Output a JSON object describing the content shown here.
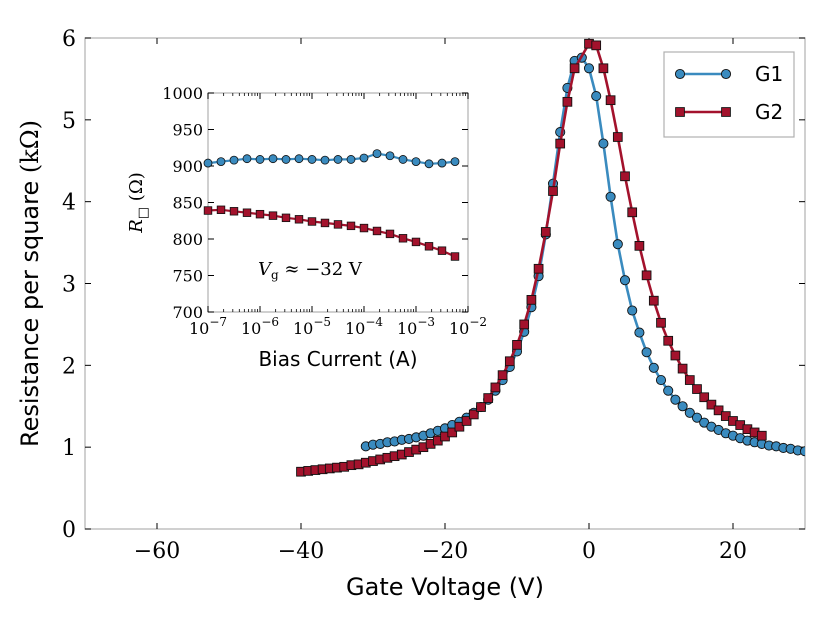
{
  "chart_data": [
    {
      "type": "line",
      "xlabel": "Gate Voltage (V)",
      "ylabel": "Resistance per square (kΩ)",
      "xlim": [
        -70,
        30
      ],
      "ylim": [
        0,
        6
      ],
      "xticks": [
        -60,
        -40,
        -20,
        0,
        20
      ],
      "xtick_labels": [
        "−60",
        "−40",
        "−20",
        "0",
        "20"
      ],
      "yticks": [
        0,
        1,
        2,
        3,
        4,
        5,
        6
      ],
      "ytick_labels": [
        "0",
        "1",
        "2",
        "3",
        "4",
        "5",
        "6"
      ],
      "legend": "top-right",
      "grid": false,
      "series": [
        {
          "name": "G1",
          "color": "#3a8bbf",
          "marker": "circle",
          "points": [
            [
              -31,
              1.01
            ],
            [
              -30,
              1.03
            ],
            [
              -29,
              1.04
            ],
            [
              -28,
              1.06
            ],
            [
              -27,
              1.07
            ],
            [
              -26,
              1.09
            ],
            [
              -25,
              1.1
            ],
            [
              -24,
              1.12
            ],
            [
              -23,
              1.14
            ],
            [
              -22,
              1.17
            ],
            [
              -21,
              1.2
            ],
            [
              -20,
              1.23
            ],
            [
              -19,
              1.27
            ],
            [
              -18,
              1.31
            ],
            [
              -17,
              1.36
            ],
            [
              -16,
              1.42
            ],
            [
              -15,
              1.49
            ],
            [
              -14,
              1.58
            ],
            [
              -13,
              1.69
            ],
            [
              -12,
              1.82
            ],
            [
              -11,
              1.98
            ],
            [
              -10,
              2.17
            ],
            [
              -9,
              2.41
            ],
            [
              -8,
              2.71
            ],
            [
              -7,
              3.09
            ],
            [
              -6,
              3.6
            ],
            [
              -5,
              4.22
            ],
            [
              -4,
              4.85
            ],
            [
              -3,
              5.39
            ],
            [
              -2,
              5.72
            ],
            [
              -1,
              5.76
            ],
            [
              0,
              5.63
            ],
            [
              1,
              5.29
            ],
            [
              2,
              4.71
            ],
            [
              3,
              4.06
            ],
            [
              4,
              3.48
            ],
            [
              5,
              3.04
            ],
            [
              6,
              2.67
            ],
            [
              7,
              2.4
            ],
            [
              8,
              2.16
            ],
            [
              9,
              1.97
            ],
            [
              10,
              1.82
            ],
            [
              11,
              1.69
            ],
            [
              12,
              1.58
            ],
            [
              13,
              1.5
            ],
            [
              14,
              1.42
            ],
            [
              15,
              1.36
            ],
            [
              16,
              1.3
            ],
            [
              17,
              1.25
            ],
            [
              18,
              1.21
            ],
            [
              19,
              1.17
            ],
            [
              20,
              1.14
            ],
            [
              21,
              1.11
            ],
            [
              22,
              1.08
            ],
            [
              23,
              1.06
            ],
            [
              24,
              1.04
            ],
            [
              25,
              1.02
            ],
            [
              26,
              1.01
            ],
            [
              27,
              0.99
            ],
            [
              28,
              0.98
            ],
            [
              29,
              0.96
            ],
            [
              30,
              0.95
            ]
          ]
        },
        {
          "name": "G2",
          "color": "#a3122c",
          "marker": "square",
          "points": [
            [
              -40,
              0.7
            ],
            [
              -39,
              0.71
            ],
            [
              -38,
              0.72
            ],
            [
              -37,
              0.73
            ],
            [
              -36,
              0.74
            ],
            [
              -35,
              0.75
            ],
            [
              -34,
              0.76
            ],
            [
              -33,
              0.78
            ],
            [
              -32,
              0.79
            ],
            [
              -31,
              0.81
            ],
            [
              -30,
              0.83
            ],
            [
              -29,
              0.85
            ],
            [
              -28,
              0.87
            ],
            [
              -27,
              0.89
            ],
            [
              -26,
              0.91
            ],
            [
              -25,
              0.94
            ],
            [
              -24,
              0.97
            ],
            [
              -23,
              1.0
            ],
            [
              -22,
              1.04
            ],
            [
              -21,
              1.08
            ],
            [
              -20,
              1.13
            ],
            [
              -19,
              1.18
            ],
            [
              -18,
              1.25
            ],
            [
              -17,
              1.32
            ],
            [
              -16,
              1.4
            ],
            [
              -15,
              1.49
            ],
            [
              -14,
              1.6
            ],
            [
              -13,
              1.73
            ],
            [
              -12,
              1.88
            ],
            [
              -11,
              2.05
            ],
            [
              -10,
              2.25
            ],
            [
              -9,
              2.5
            ],
            [
              -8,
              2.8
            ],
            [
              -7,
              3.18
            ],
            [
              -6,
              3.63
            ],
            [
              -5,
              4.13
            ],
            [
              -4,
              4.71
            ],
            [
              -3,
              5.22
            ],
            [
              -2,
              5.63
            ],
            [
              0,
              5.93
            ],
            [
              1,
              5.91
            ],
            [
              2,
              5.63
            ],
            [
              3,
              5.24
            ],
            [
              4,
              4.79
            ],
            [
              5,
              4.31
            ],
            [
              6,
              3.87
            ],
            [
              7,
              3.46
            ],
            [
              8,
              3.1
            ],
            [
              9,
              2.79
            ],
            [
              10,
              2.52
            ],
            [
              11,
              2.3
            ],
            [
              12,
              2.12
            ],
            [
              13,
              1.96
            ],
            [
              14,
              1.82
            ],
            [
              15,
              1.71
            ],
            [
              16,
              1.61
            ],
            [
              17,
              1.52
            ],
            [
              18,
              1.45
            ],
            [
              19,
              1.38
            ],
            [
              20,
              1.32
            ],
            [
              21,
              1.27
            ],
            [
              22,
              1.22
            ],
            [
              23,
              1.18
            ],
            [
              24,
              1.14
            ]
          ]
        }
      ]
    },
    {
      "type": "line",
      "xlabel": "Bias Current (A)",
      "ylabel": "R□ (Ω)",
      "xscale": "log",
      "xlim_exp": [
        -7,
        -2
      ],
      "ylim": [
        700,
        1000
      ],
      "xtick_exps": [
        -7,
        -6,
        -5,
        -4,
        -3,
        -2
      ],
      "xtick_labels": [
        "−7",
        "−6",
        "−5",
        "−4",
        "−3",
        "−2"
      ],
      "xtick_base": "10",
      "yticks": [
        700,
        750,
        800,
        850,
        900,
        950,
        1000
      ],
      "ytick_labels": [
        "700",
        "750",
        "800",
        "850",
        "900",
        "950",
        "1000"
      ],
      "annotation": "V_g ≈ −32 V",
      "series": [
        {
          "name": "G1",
          "color": "#3a8bbf",
          "marker": "circle",
          "log10x": [
            -7.0,
            -6.75,
            -6.5,
            -6.25,
            -6.0,
            -5.75,
            -5.5,
            -5.25,
            -5.0,
            -4.75,
            -4.5,
            -4.25,
            -4.0,
            -3.75,
            -3.5,
            -3.25,
            -3.0,
            -2.75,
            -2.5,
            -2.25
          ],
          "values": [
            904,
            906,
            908,
            910,
            909,
            910,
            909,
            910,
            909,
            908,
            909,
            909,
            911,
            917,
            914,
            909,
            906,
            903,
            904,
            906
          ]
        },
        {
          "name": "G2",
          "color": "#a3122c",
          "marker": "square",
          "log10x": [
            -7.0,
            -6.75,
            -6.5,
            -6.25,
            -6.0,
            -5.75,
            -5.5,
            -5.25,
            -5.0,
            -4.75,
            -4.5,
            -4.25,
            -4.0,
            -3.75,
            -3.5,
            -3.25,
            -3.0,
            -2.75,
            -2.5,
            -2.25
          ],
          "values": [
            839,
            840,
            838,
            836,
            834,
            832,
            829,
            827,
            824,
            822,
            820,
            818,
            815,
            811,
            807,
            801,
            796,
            790,
            784,
            776
          ]
        }
      ]
    }
  ],
  "annotation_parts": {
    "symbol": "V",
    "sub": "g",
    "rest": " ≈ −32 V"
  },
  "inset_ylabel_parts": {
    "symbol": "R",
    "sub": "□",
    "rest": " (Ω)"
  },
  "main_ylabel_parts": {
    "text": "Resistance per square ",
    "unit": "(kΩ)"
  }
}
